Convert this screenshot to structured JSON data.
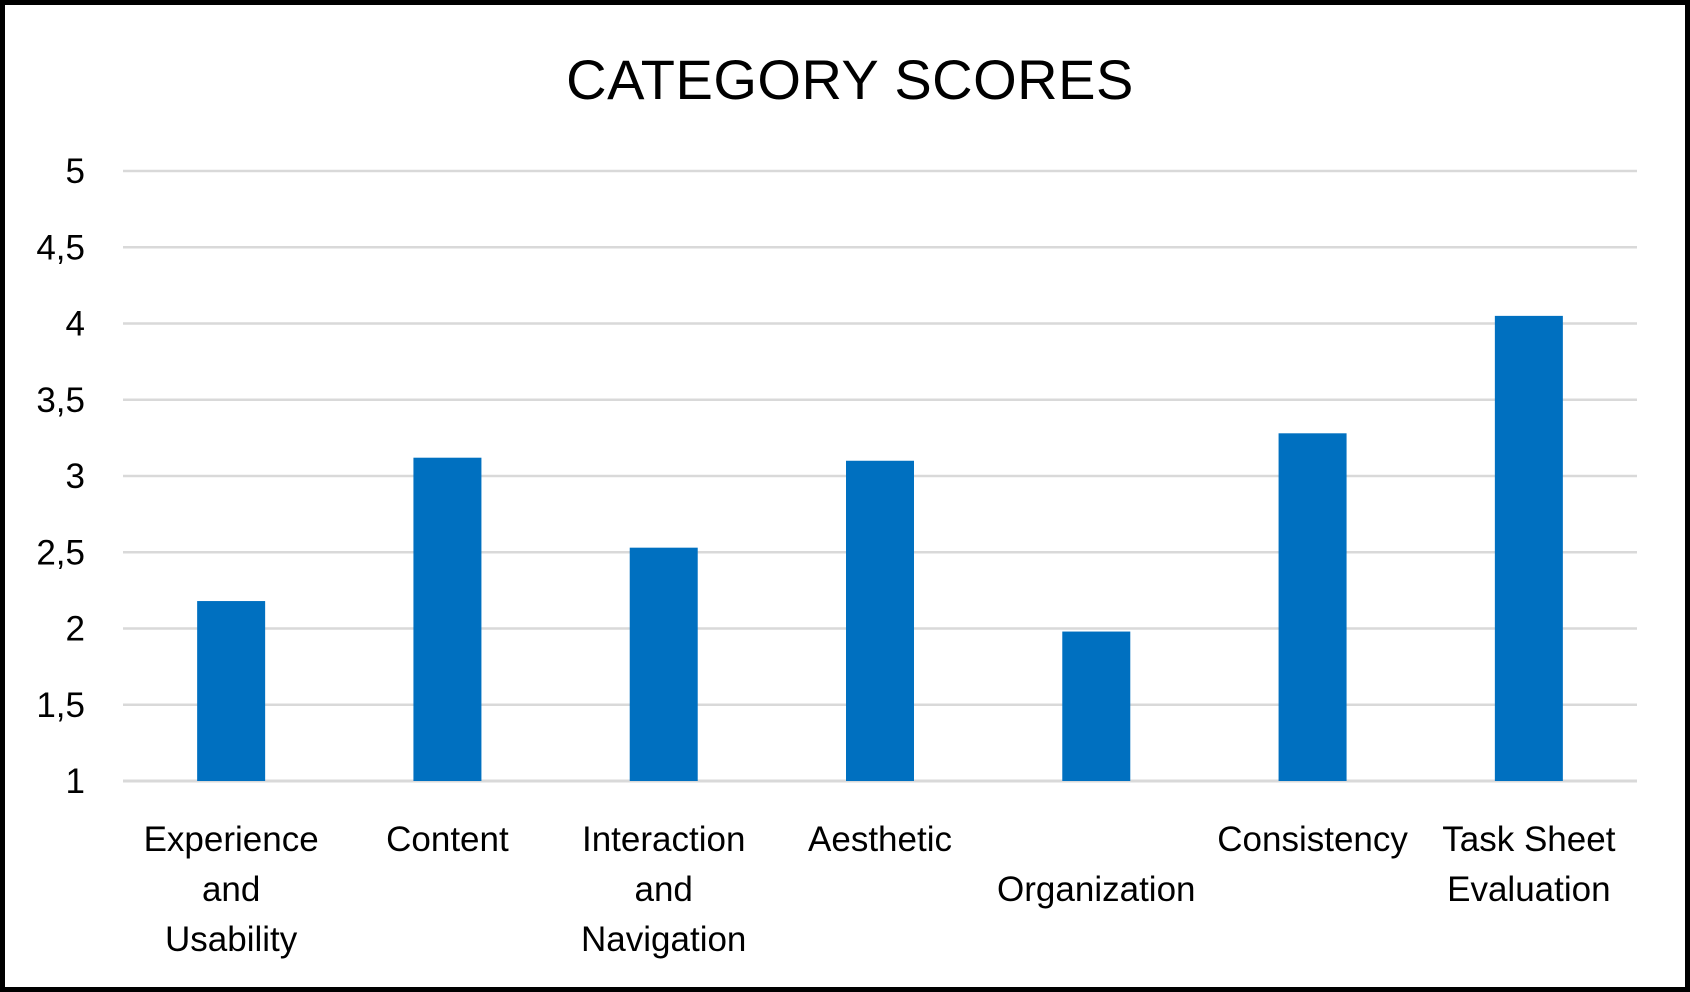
{
  "chart_data": {
    "type": "bar",
    "title": "CATEGORY SCORES",
    "categories": [
      "Experience and Usability",
      "Content",
      "Interaction and Navigation",
      "Aesthetic",
      "Organization",
      "Consistency",
      "Task Sheet Evaluation"
    ],
    "category_label_lines": [
      [
        "Experience",
        "and",
        "Usability"
      ],
      [
        "Content"
      ],
      [
        "Interaction",
        "and",
        "Navigation"
      ],
      [
        "Aesthetic"
      ],
      [
        "Organization"
      ],
      [
        "Consistency"
      ],
      [
        "Task Sheet",
        "Evaluation"
      ]
    ],
    "values": [
      2.18,
      3.12,
      2.53,
      3.1,
      1.98,
      3.28,
      4.05
    ],
    "ylim": [
      1,
      5
    ],
    "yticks": [
      1,
      1.5,
      2,
      2.5,
      3,
      3.5,
      4,
      4.5,
      5
    ],
    "ytick_labels": [
      "1",
      "1,5",
      "2",
      "2,5",
      "3",
      "3,5",
      "4",
      "4,5",
      "5"
    ],
    "xlabel": "",
    "ylabel": "",
    "grid": true,
    "legend": "none",
    "bar_color": "#0070C0",
    "grid_color": "#D9D9D9"
  }
}
